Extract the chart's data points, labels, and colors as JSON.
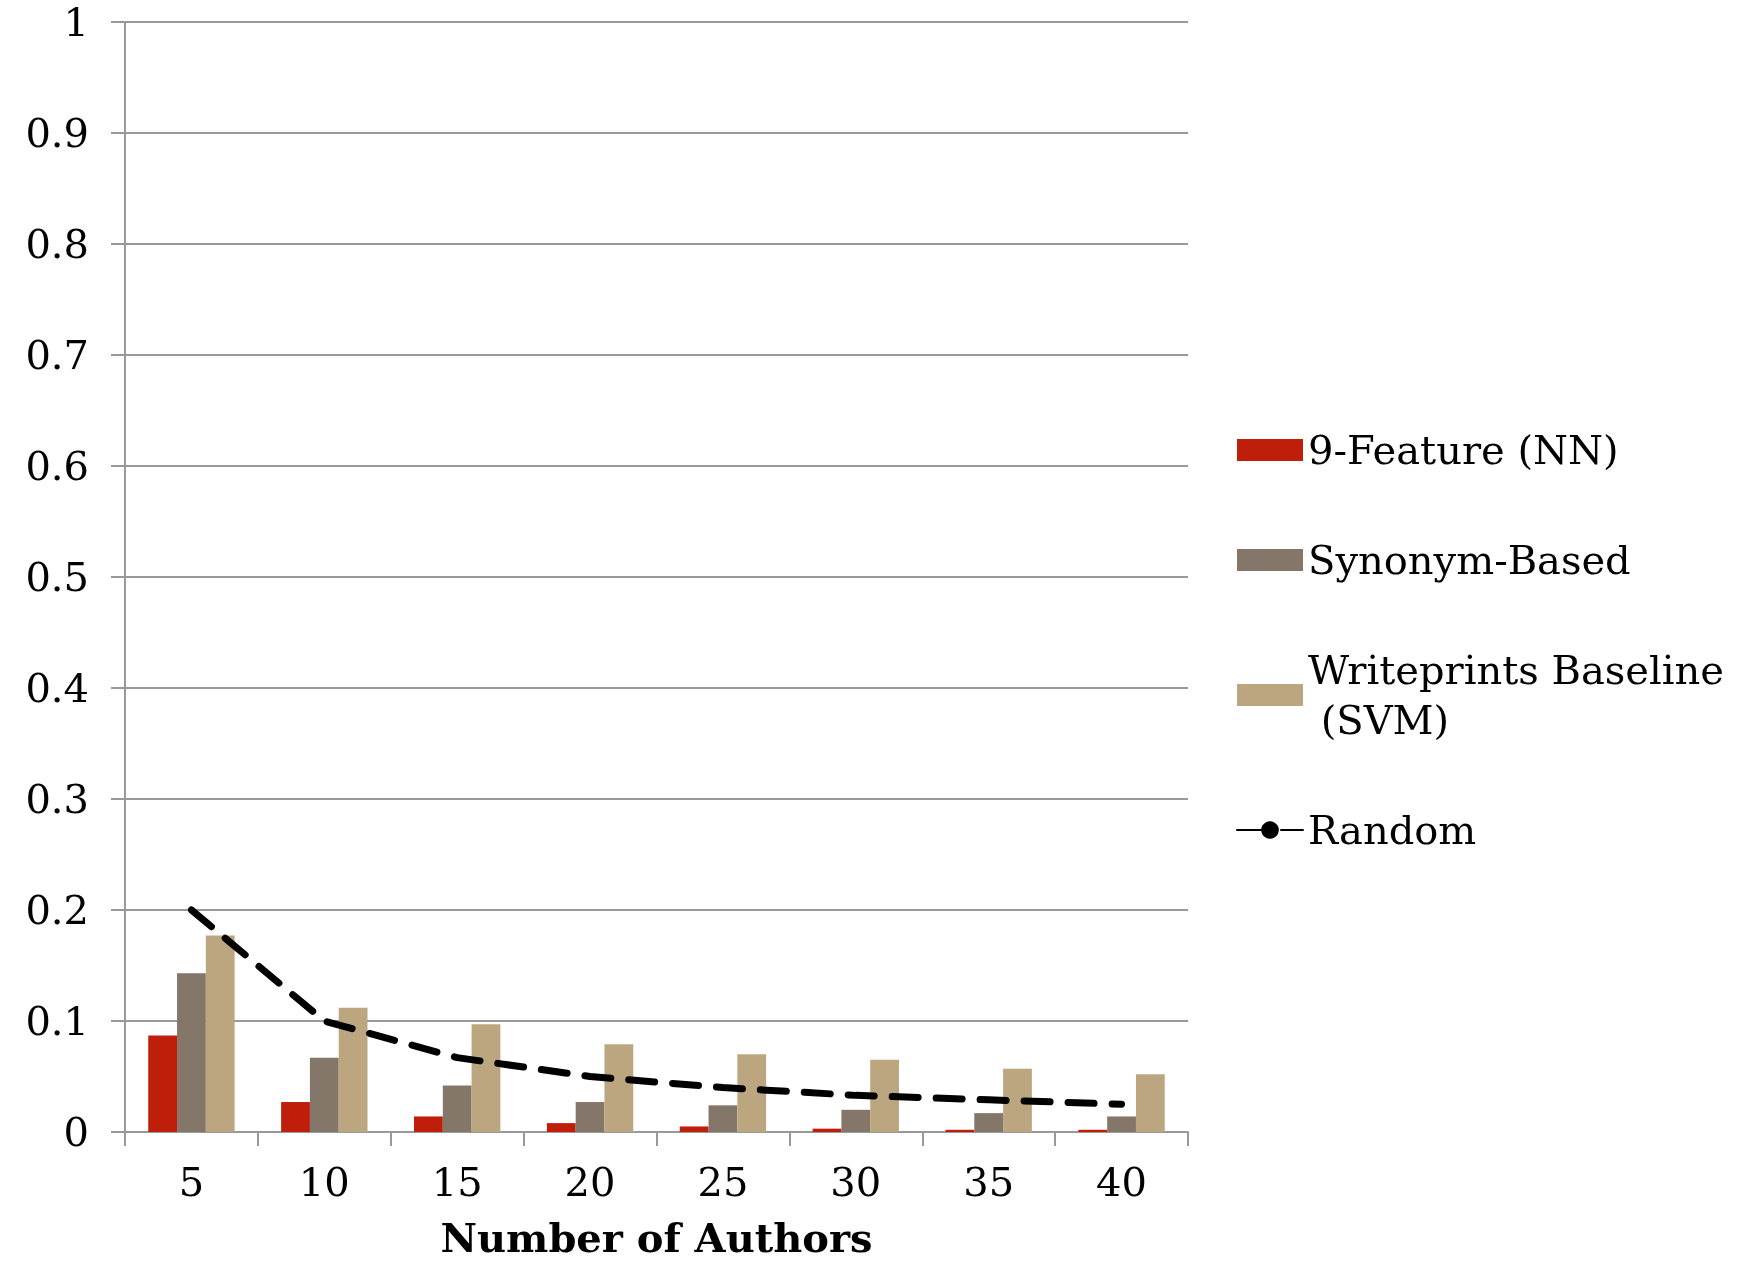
{
  "chart_data": {
    "type": "bar",
    "xlabel": "Number of Authors",
    "categories": [
      "5",
      "10",
      "15",
      "20",
      "25",
      "30",
      "35",
      "40"
    ],
    "series": [
      {
        "name": "9-Feature (NN)",
        "color": "#be1e0a",
        "values": [
          0.087,
          0.027,
          0.014,
          0.008,
          0.005,
          0.003,
          0.002,
          0.002
        ]
      },
      {
        "name": "Synonym-Based",
        "color": "#85766a",
        "values": [
          0.143,
          0.067,
          0.042,
          0.027,
          0.024,
          0.02,
          0.017,
          0.014
        ]
      },
      {
        "name": "Writeprints Baseline (SVM)",
        "color": "#bca680",
        "values": [
          0.177,
          0.112,
          0.097,
          0.079,
          0.07,
          0.065,
          0.057,
          0.052
        ]
      },
      {
        "name": "Random",
        "type": "line",
        "color": "#000000",
        "line_style": "dashed",
        "marker": "none",
        "values": [
          0.2,
          0.1,
          0.067,
          0.05,
          0.04,
          0.033,
          0.029,
          0.025
        ]
      }
    ],
    "ylim": [
      0,
      1
    ],
    "yticks": [
      0,
      0.1,
      0.2,
      0.3,
      0.4,
      0.5,
      0.6,
      0.7,
      0.8,
      0.9,
      1
    ],
    "grid": "y",
    "legend": "right"
  }
}
